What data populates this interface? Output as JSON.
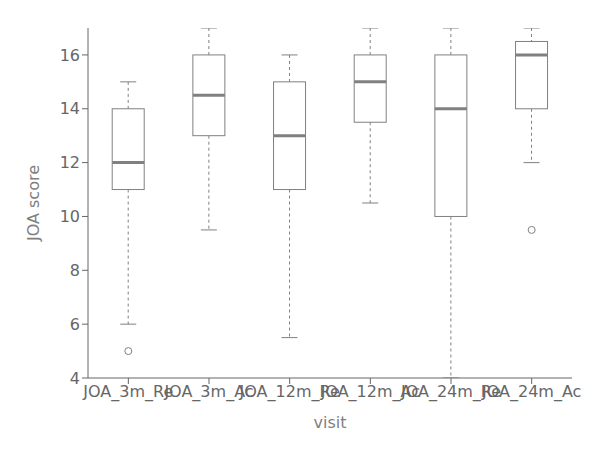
{
  "chart_data": {
    "type": "box",
    "categories": [
      "JOA_3m_Re",
      "JOA_3m_Ac",
      "JOA_12m_Re",
      "JOA_12m_Ac",
      "JOA_24m_Re",
      "JOA_24m_Ac"
    ],
    "boxes": [
      {
        "whislo": 6.0,
        "q1": 11.0,
        "med": 12.0,
        "q3": 14.0,
        "whishi": 15.0,
        "fliers": [
          5.0
        ]
      },
      {
        "whislo": 9.5,
        "q1": 13.0,
        "med": 14.5,
        "q3": 16.0,
        "whishi": 17.0,
        "fliers": []
      },
      {
        "whislo": 5.5,
        "q1": 11.0,
        "med": 13.0,
        "q3": 15.0,
        "whishi": 16.0,
        "fliers": []
      },
      {
        "whislo": 10.5,
        "q1": 13.5,
        "med": 15.0,
        "q3": 16.0,
        "whishi": 17.0,
        "fliers": []
      },
      {
        "whislo": 4.0,
        "q1": 10.0,
        "med": 14.0,
        "q3": 16.0,
        "whishi": 17.0,
        "fliers": []
      },
      {
        "whislo": 12.0,
        "q1": 14.0,
        "med": 16.0,
        "q3": 16.5,
        "whishi": 17.0,
        "fliers": [
          9.5
        ]
      }
    ],
    "xlabel": "visit",
    "ylabel": "JOA score",
    "ylim": [
      4,
      17
    ],
    "yticks": [
      4,
      6,
      8,
      10,
      12,
      14,
      16
    ],
    "grid": false,
    "color": "#808080"
  }
}
